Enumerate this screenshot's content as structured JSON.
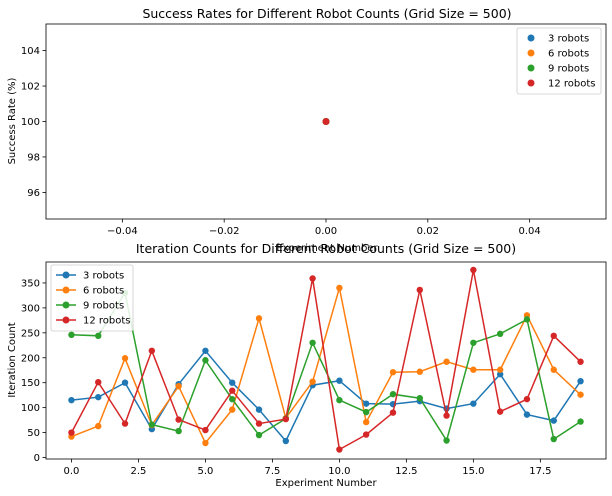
{
  "chart_data": [
    {
      "type": "scatter",
      "title": "Success Rates for Different Robot Counts (Grid Size = 500)",
      "xlabel": "Experiment Number",
      "ylabel": "Success Rate (%)",
      "xlim": [
        -0.055,
        0.055
      ],
      "ylim": [
        94.5,
        105.5
      ],
      "xticks": [
        -0.04,
        -0.02,
        0.0,
        0.02,
        0.04
      ],
      "xtick_labels": [
        "−0.04",
        "−0.02",
        "0.00",
        "0.02",
        "0.04"
      ],
      "yticks": [
        96,
        98,
        100,
        102,
        104
      ],
      "ytick_labels": [
        "96",
        "98",
        "100",
        "102",
        "104"
      ],
      "legend_position": "top-right",
      "series": [
        {
          "name": "3 robots",
          "color": "#1f77b4",
          "x": [
            0
          ],
          "y": [
            100
          ]
        },
        {
          "name": "6 robots",
          "color": "#ff7f0e",
          "x": [
            0
          ],
          "y": [
            100
          ]
        },
        {
          "name": "9 robots",
          "color": "#2ca02c",
          "x": [
            0
          ],
          "y": [
            100
          ]
        },
        {
          "name": "12 robots",
          "color": "#d62728",
          "x": [
            0
          ],
          "y": [
            100
          ]
        }
      ]
    },
    {
      "type": "line",
      "title": "Iteration Counts for Different Robot Counts (Grid Size = 500)",
      "xlabel": "Experiment Number",
      "ylabel": "Iteration Count",
      "xlim": [
        -0.95,
        19.95
      ],
      "ylim": [
        -3,
        392
      ],
      "xticks": [
        0,
        2.5,
        5,
        7.5,
        10,
        12.5,
        15,
        17.5
      ],
      "xtick_labels": [
        "0.0",
        "2.5",
        "5.0",
        "7.5",
        "10.0",
        "12.5",
        "15.0",
        "17.5"
      ],
      "yticks": [
        0,
        50,
        100,
        150,
        200,
        250,
        300,
        350
      ],
      "ytick_labels": [
        "0",
        "50",
        "100",
        "150",
        "200",
        "250",
        "300",
        "350"
      ],
      "legend_position": "top-left",
      "x": [
        0,
        1,
        2,
        3,
        4,
        5,
        6,
        7,
        8,
        9,
        10,
        11,
        12,
        13,
        14,
        15,
        16,
        17,
        18,
        19
      ],
      "series": [
        {
          "name": "3 robots",
          "color": "#1f77b4",
          "values": [
            115,
            121,
            150,
            57,
            147,
            214,
            150,
            96,
            33,
            145,
            154,
            108,
            107,
            113,
            98,
            108,
            167,
            86,
            74,
            153
          ]
        },
        {
          "name": "6 robots",
          "color": "#ff7f0e",
          "values": [
            42,
            63,
            199,
            65,
            143,
            29,
            96,
            279,
            79,
            152,
            340,
            71,
            171,
            172,
            192,
            176,
            176,
            285,
            176,
            126
          ]
        },
        {
          "name": "9 robots",
          "color": "#2ca02c",
          "values": [
            246,
            244,
            330,
            66,
            53,
            195,
            117,
            45,
            78,
            230,
            115,
            91,
            127,
            119,
            34,
            230,
            248,
            277,
            37,
            72
          ]
        },
        {
          "name": "12 robots",
          "color": "#d62728",
          "values": [
            50,
            151,
            68,
            214,
            76,
            55,
            134,
            68,
            77,
            359,
            16,
            46,
            90,
            336,
            84,
            376,
            92,
            117,
            244,
            192
          ]
        }
      ]
    }
  ]
}
